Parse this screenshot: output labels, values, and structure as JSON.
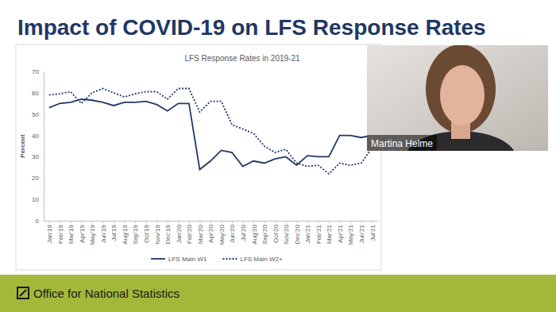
{
  "slide": {
    "title": "Impact of COVID-19 on LFS Response Rates",
    "presenter": "Martina Helme",
    "footer": "Office for National Statistics"
  },
  "chart_data": {
    "type": "line",
    "title": "LFS Response Rates in 2019-21",
    "y_label": "Percent",
    "categories": [
      "Jan'19",
      "Feb'19",
      "Mar'19",
      "Apr'19",
      "May'19",
      "Jun'19",
      "Jul'19",
      "Aug'19",
      "Sep'19",
      "Oct'19",
      "Nov'19",
      "Dec'19",
      "Jan'20",
      "Feb'20",
      "Mar'20",
      "Apr'20",
      "May'20",
      "Jun'20",
      "Jul'20",
      "Aug'20",
      "Sep'20",
      "Oct'20",
      "Nov'20",
      "Dec'20",
      "Jan'21",
      "Feb'21",
      "Mar'21",
      "Apr'21",
      "May'21",
      "Jun'21",
      "Jul'21"
    ],
    "series": [
      {
        "name": "LFS Main W1",
        "color": "#203864",
        "line_style": "solid",
        "values": [
          53,
          55,
          55.5,
          57,
          56.5,
          55.5,
          54,
          55.5,
          55.5,
          56,
          54.5,
          51.5,
          55,
          55,
          24,
          28,
          33,
          32,
          25.5,
          28,
          27,
          29,
          30,
          26,
          30.5,
          30,
          30,
          40,
          40,
          39,
          40
        ]
      },
      {
        "name": "LFS Main W2+",
        "color": "#203864",
        "line_style": "dotted",
        "values": [
          59,
          59.5,
          60.5,
          55,
          60,
          62,
          60,
          58,
          59.5,
          60.5,
          60.5,
          57,
          62,
          62,
          51,
          56,
          56,
          45,
          43,
          41,
          35,
          32,
          33.5,
          27,
          25.5,
          26,
          22,
          27,
          26,
          27,
          34
        ]
      }
    ],
    "ylim": [
      0,
      70
    ],
    "yticks": [
      0,
      10,
      20,
      30,
      40,
      50,
      60,
      70
    ],
    "grid": false,
    "legend": "bottom"
  }
}
